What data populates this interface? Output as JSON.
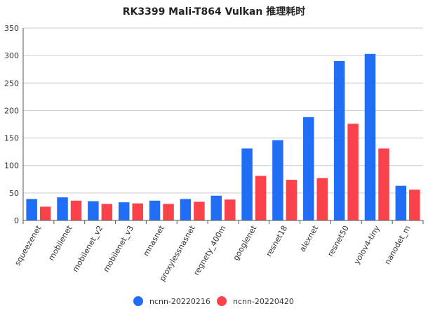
{
  "chart_data": {
    "type": "bar",
    "title": "RK3399 Mali-T864 Vulkan 推理耗时",
    "xlabel": "",
    "ylabel": "",
    "ylim": [
      0,
      350
    ],
    "y_ticks": [
      0,
      50,
      100,
      150,
      200,
      250,
      300,
      350
    ],
    "grid": true,
    "legend_position": "bottom",
    "categories": [
      "squeezenet",
      "mobilenet",
      "mobilenet_v2",
      "mobilenet_v3",
      "mnasnet",
      "proxylessnasnet",
      "regnety_400m",
      "googlenet",
      "resnet18",
      "alexnet",
      "resnet50",
      "yolov4-tiny",
      "nanodet_m"
    ],
    "series": [
      {
        "name": "ncnn-20220216",
        "color": "#1f6ef5",
        "values": [
          39,
          42,
          35,
          33,
          36,
          39,
          45,
          131,
          146,
          188,
          290,
          303,
          63
        ]
      },
      {
        "name": "ncnn-20220420",
        "color": "#f94249",
        "values": [
          25,
          36,
          30,
          31,
          30,
          34,
          38,
          81,
          74,
          77,
          176,
          131,
          56
        ]
      }
    ]
  }
}
